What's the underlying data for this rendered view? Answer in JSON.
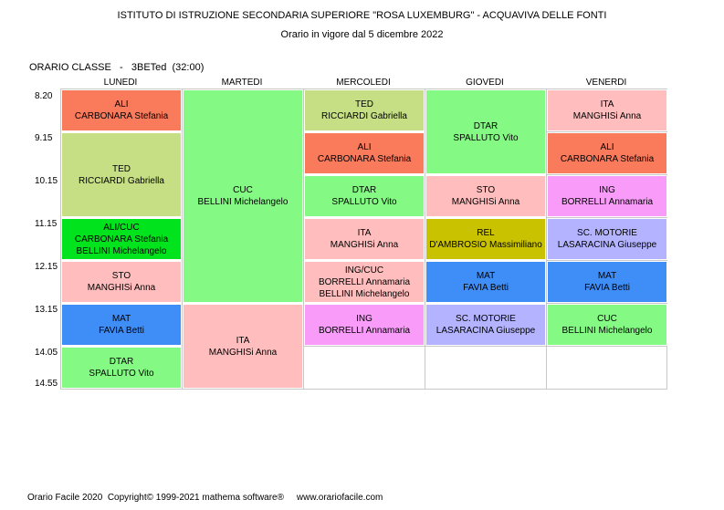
{
  "header": {
    "school": "ISTITUTO DI ISTRUZIONE SECONDARIA SUPERIORE \"ROSA LUXEMBURG\" - ACQUAVIVA DELLE FONTI",
    "validity": "Orario in vigore dal 5 dicembre 2022"
  },
  "class_title": "ORARIO CLASSE   -   3BETed  (32:00)",
  "days": [
    "LUNEDI",
    "MARTEDI",
    "MERCOLEDI",
    "GIOVEDI",
    "VENERDI"
  ],
  "times": [
    "8.20",
    "9.15",
    "10.15",
    "11.15",
    "12.15",
    "13.15",
    "14.05",
    "14.55"
  ],
  "colors": {
    "ALI": "#fa7a5c",
    "TED": "#c6df84",
    "ALI/CUC": "#00e31d",
    "STO": "#ffbdbd",
    "MAT": "#3f8ef8",
    "DTAR": "#84fa84",
    "CUC": "#84fa84",
    "ITA": "#ffbdbd",
    "ING/CUC": "#ffbdbd",
    "ING": "#f99cf9",
    "REL": "#c8c200",
    "SC. MOTORIE": "#b3b3ff"
  },
  "lessons": [
    {
      "day": 0,
      "start": 0,
      "span": 1,
      "subject": "ALI",
      "teachers": [
        "CARBONARA Stefania"
      ]
    },
    {
      "day": 0,
      "start": 1,
      "span": 2,
      "subject": "TED",
      "teachers": [
        "RICCIARDI Gabriella"
      ]
    },
    {
      "day": 0,
      "start": 3,
      "span": 1,
      "subject": "ALI/CUC",
      "teachers": [
        "CARBONARA Stefania",
        "BELLINI Michelangelo"
      ]
    },
    {
      "day": 0,
      "start": 4,
      "span": 1,
      "subject": "STO",
      "teachers": [
        "MANGHISi Anna"
      ]
    },
    {
      "day": 0,
      "start": 5,
      "span": 1,
      "subject": "MAT",
      "teachers": [
        "FAVIA Betti"
      ]
    },
    {
      "day": 0,
      "start": 6,
      "span": 1,
      "subject": "DTAR",
      "teachers": [
        "SPALLUTO Vito"
      ]
    },
    {
      "day": 1,
      "start": 0,
      "span": 5,
      "subject": "CUC",
      "teachers": [
        "BELLINI Michelangelo"
      ]
    },
    {
      "day": 1,
      "start": 5,
      "span": 2,
      "subject": "ITA",
      "teachers": [
        "MANGHISi Anna"
      ]
    },
    {
      "day": 2,
      "start": 0,
      "span": 1,
      "subject": "TED",
      "teachers": [
        "RICCIARDI Gabriella"
      ]
    },
    {
      "day": 2,
      "start": 1,
      "span": 1,
      "subject": "ALI",
      "teachers": [
        "CARBONARA Stefania"
      ]
    },
    {
      "day": 2,
      "start": 2,
      "span": 1,
      "subject": "DTAR",
      "teachers": [
        "SPALLUTO Vito"
      ]
    },
    {
      "day": 2,
      "start": 3,
      "span": 1,
      "subject": "ITA",
      "teachers": [
        "MANGHISi Anna"
      ]
    },
    {
      "day": 2,
      "start": 4,
      "span": 1,
      "subject": "ING/CUC",
      "teachers": [
        "BORRELLI Annamaria",
        "BELLINI Michelangelo"
      ]
    },
    {
      "day": 2,
      "start": 5,
      "span": 1,
      "subject": "ING",
      "teachers": [
        "BORRELLI Annamaria"
      ]
    },
    {
      "day": 3,
      "start": 0,
      "span": 2,
      "subject": "DTAR",
      "teachers": [
        "SPALLUTO Vito"
      ]
    },
    {
      "day": 3,
      "start": 2,
      "span": 1,
      "subject": "STO",
      "teachers": [
        "MANGHISi Anna"
      ]
    },
    {
      "day": 3,
      "start": 3,
      "span": 1,
      "subject": "REL",
      "teachers": [
        "D'AMBROSIO Massimiliano"
      ]
    },
    {
      "day": 3,
      "start": 4,
      "span": 1,
      "subject": "MAT",
      "teachers": [
        "FAVIA Betti"
      ]
    },
    {
      "day": 3,
      "start": 5,
      "span": 1,
      "subject": "SC. MOTORIE",
      "teachers": [
        "LASARACINA Giuseppe"
      ]
    },
    {
      "day": 4,
      "start": 0,
      "span": 1,
      "subject": "ITA",
      "teachers": [
        "MANGHISi Anna"
      ]
    },
    {
      "day": 4,
      "start": 1,
      "span": 1,
      "subject": "ALI",
      "teachers": [
        "CARBONARA Stefania"
      ]
    },
    {
      "day": 4,
      "start": 2,
      "span": 1,
      "subject": "ING",
      "teachers": [
        "BORRELLI Annamaria"
      ]
    },
    {
      "day": 4,
      "start": 3,
      "span": 1,
      "subject": "SC. MOTORIE",
      "teachers": [
        "LASARACINA Giuseppe"
      ]
    },
    {
      "day": 4,
      "start": 4,
      "span": 1,
      "subject": "MAT",
      "teachers": [
        "FAVIA Betti"
      ]
    },
    {
      "day": 4,
      "start": 5,
      "span": 1,
      "subject": "CUC",
      "teachers": [
        "BELLINI Michelangelo"
      ]
    }
  ],
  "footer": "Orario Facile 2020  Copyright© 1999-2021 mathema software®     www.orariofacile.com"
}
